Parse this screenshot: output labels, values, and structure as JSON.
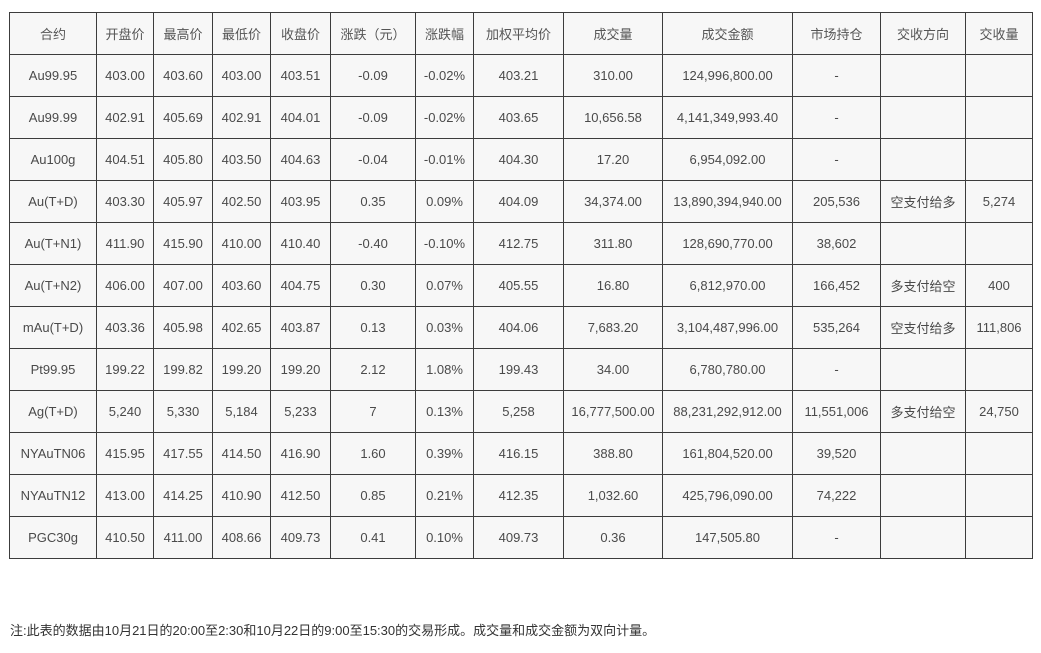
{
  "colors": {
    "page_background": "#ffffff",
    "table_border": "#3c3c3c",
    "cell_background": "#f7f7f7",
    "header_text": "#555555",
    "cell_text": "#4a4a4a"
  },
  "chart_data": {
    "type": "table",
    "title": "",
    "columns": [
      "合约",
      "开盘价",
      "最高价",
      "最低价",
      "收盘价",
      "涨跌（元）",
      "涨跌幅",
      "加权平均价",
      "成交量",
      "成交金额",
      "市场持仓",
      "交收方向",
      "交收量"
    ],
    "rows": [
      [
        "Au99.95",
        "403.00",
        "403.60",
        "403.00",
        "403.51",
        "-0.09",
        "-0.02%",
        "403.21",
        "310.00",
        "124,996,800.00",
        "-",
        "",
        ""
      ],
      [
        "Au99.99",
        "402.91",
        "405.69",
        "402.91",
        "404.01",
        "-0.09",
        "-0.02%",
        "403.65",
        "10,656.58",
        "4,141,349,993.40",
        "-",
        "",
        ""
      ],
      [
        "Au100g",
        "404.51",
        "405.80",
        "403.50",
        "404.63",
        "-0.04",
        "-0.01%",
        "404.30",
        "17.20",
        "6,954,092.00",
        "-",
        "",
        ""
      ],
      [
        "Au(T+D)",
        "403.30",
        "405.97",
        "402.50",
        "403.95",
        "0.35",
        "0.09%",
        "404.09",
        "34,374.00",
        "13,890,394,940.00",
        "205,536",
        "空支付给多",
        "5,274"
      ],
      [
        "Au(T+N1)",
        "411.90",
        "415.90",
        "410.00",
        "410.40",
        "-0.40",
        "-0.10%",
        "412.75",
        "311.80",
        "128,690,770.00",
        "38,602",
        "",
        ""
      ],
      [
        "Au(T+N2)",
        "406.00",
        "407.00",
        "403.60",
        "404.75",
        "0.30",
        "0.07%",
        "405.55",
        "16.80",
        "6,812,970.00",
        "166,452",
        "多支付给空",
        "400"
      ],
      [
        "mAu(T+D)",
        "403.36",
        "405.98",
        "402.65",
        "403.87",
        "0.13",
        "0.03%",
        "404.06",
        "7,683.20",
        "3,104,487,996.00",
        "535,264",
        "空支付给多",
        "111,806"
      ],
      [
        "Pt99.95",
        "199.22",
        "199.82",
        "199.20",
        "199.20",
        "2.12",
        "1.08%",
        "199.43",
        "34.00",
        "6,780,780.00",
        "-",
        "",
        ""
      ],
      [
        "Ag(T+D)",
        "5,240",
        "5,330",
        "5,184",
        "5,233",
        "7",
        "0.13%",
        "5,258",
        "16,777,500.00",
        "88,231,292,912.00",
        "11,551,006",
        "多支付给空",
        "24,750"
      ],
      [
        "NYAuTN06",
        "415.95",
        "417.55",
        "414.50",
        "416.90",
        "1.60",
        "0.39%",
        "416.15",
        "388.80",
        "161,804,520.00",
        "39,520",
        "",
        ""
      ],
      [
        "NYAuTN12",
        "413.00",
        "414.25",
        "410.90",
        "412.50",
        "0.85",
        "0.21%",
        "412.35",
        "1,032.60",
        "425,796,090.00",
        "74,222",
        "",
        ""
      ],
      [
        "PGC30g",
        "410.50",
        "411.00",
        "408.66",
        "409.73",
        "0.41",
        "0.10%",
        "409.73",
        "0.36",
        "147,505.80",
        "-",
        "",
        ""
      ]
    ],
    "note": "注:此表的数据由10月21日的20:00至2:30和10月22日的9:00至15:30的交易形成。成交量和成交金额为双向计量。"
  }
}
